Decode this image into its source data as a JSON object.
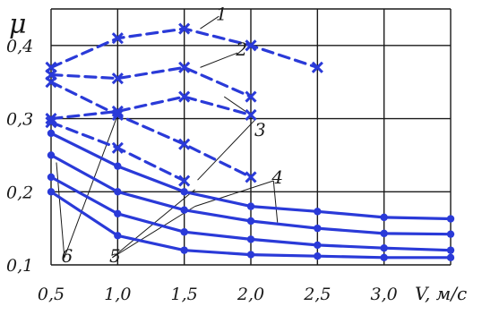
{
  "chart_data": {
    "type": "line",
    "ylabel": "μ",
    "xlabel": "V, м/с",
    "xlim": [
      0.5,
      3.5
    ],
    "ylim": [
      0.1,
      0.45
    ],
    "grid": true,
    "x_ticks": [
      "0,5",
      "1,0",
      "1,5",
      "2,0",
      "2,5",
      "3,0"
    ],
    "y_ticks": [
      "0,1",
      "0,2",
      "0,3",
      "0,4"
    ],
    "series": [
      {
        "name": "1",
        "style": "dashed",
        "marker": "x",
        "x": [
          0.5,
          1.0,
          1.5,
          2.0,
          2.5
        ],
        "y": [
          0.37,
          0.41,
          0.423,
          0.4,
          0.37
        ]
      },
      {
        "name": "2",
        "style": "dashed",
        "marker": "x",
        "x": [
          0.5,
          1.0,
          1.5,
          2.0
        ],
        "y": [
          0.36,
          0.355,
          0.37,
          0.33
        ]
      },
      {
        "name": "3",
        "style": "dashed",
        "marker": "x",
        "x": [
          0.5,
          1.0,
          1.5,
          2.0
        ],
        "y": [
          0.3,
          0.31,
          0.33,
          0.305
        ]
      },
      {
        "name": "3",
        "style": "dashed",
        "marker": "x",
        "x": [
          0.5,
          1.0,
          1.5,
          2.0
        ],
        "y": [
          0.35,
          0.305,
          0.265,
          0.22
        ]
      },
      {
        "name": "3",
        "style": "dashed",
        "marker": "x",
        "x": [
          0.5,
          1.0,
          1.5
        ],
        "y": [
          0.295,
          0.26,
          0.215
        ]
      },
      {
        "name": "4",
        "style": "solid",
        "marker": "dot",
        "x": [
          0.5,
          1.0,
          1.5,
          2.0,
          2.5,
          3.0,
          3.5
        ],
        "y": [
          0.28,
          0.235,
          0.2,
          0.18,
          0.173,
          0.165,
          0.163
        ]
      },
      {
        "name": "5",
        "style": "solid",
        "marker": "dot",
        "x": [
          0.5,
          1.0,
          1.5,
          2.0,
          2.5,
          3.0,
          3.5
        ],
        "y": [
          0.25,
          0.2,
          0.175,
          0.16,
          0.15,
          0.143,
          0.142
        ]
      },
      {
        "name": "5",
        "style": "solid",
        "marker": "dot",
        "x": [
          0.5,
          1.0,
          1.5,
          2.0,
          2.5,
          3.0,
          3.5
        ],
        "y": [
          0.22,
          0.17,
          0.145,
          0.135,
          0.127,
          0.123,
          0.12
        ]
      },
      {
        "name": "6",
        "style": "solid",
        "marker": "dot",
        "x": [
          0.5,
          1.0,
          1.5,
          2.0,
          2.5,
          3.0,
          3.5
        ],
        "y": [
          0.2,
          0.14,
          0.12,
          0.114,
          0.112,
          0.11,
          0.11
        ]
      }
    ],
    "curve_labels": [
      {
        "text": "1",
        "x": 1.78,
        "y": 0.443
      },
      {
        "text": "2",
        "x": 1.93,
        "y": 0.395
      },
      {
        "text": "3",
        "x": 2.07,
        "y": 0.285
      },
      {
        "text": "4",
        "x": 2.2,
        "y": 0.22
      },
      {
        "text": "5",
        "x": 0.98,
        "y": 0.112
      },
      {
        "text": "6",
        "x": 0.62,
        "y": 0.112
      }
    ],
    "colors": {
      "data": "#2a3ad8",
      "grid": "#1a1a1a",
      "text": "#1a1a1a"
    }
  }
}
